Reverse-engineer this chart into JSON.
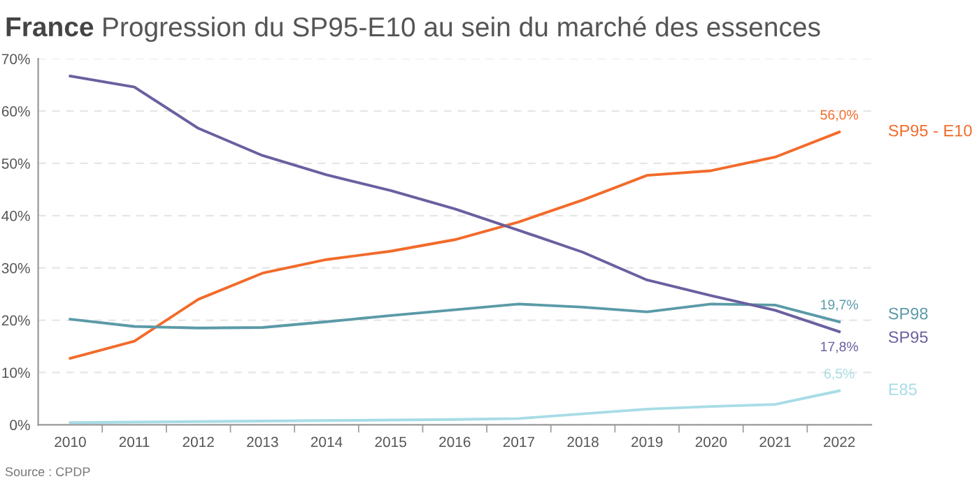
{
  "chart_data": {
    "type": "line",
    "title": "France",
    "subtitle": "Progression du SP95-E10 au sein du marché des essences",
    "categories": [
      "2010",
      "2011",
      "2012",
      "2013",
      "2014",
      "2015",
      "2016",
      "2017",
      "2018",
      "2019",
      "2020",
      "2021",
      "2022"
    ],
    "series": [
      {
        "name": "SP95 - E10",
        "color": "#f26b2a",
        "values": [
          12.7,
          16.0,
          24.0,
          29.0,
          31.6,
          33.2,
          35.4,
          38.8,
          43.0,
          47.7,
          48.6,
          51.2,
          56.0
        ],
        "value_labels": [
          null,
          null,
          null,
          null,
          null,
          null,
          null,
          null,
          null,
          null,
          null,
          null,
          "56,0%"
        ]
      },
      {
        "name": "SP98",
        "color": "#5b9aa8",
        "values": [
          20.2,
          18.8,
          18.5,
          18.6,
          19.7,
          20.9,
          22.0,
          23.1,
          22.5,
          21.6,
          23.1,
          22.9,
          19.7
        ],
        "value_labels": [
          null,
          null,
          null,
          null,
          null,
          null,
          null,
          null,
          null,
          null,
          null,
          null,
          "19,7%"
        ]
      },
      {
        "name": "SP95",
        "color": "#6b5fa0",
        "values": [
          66.7,
          64.6,
          56.7,
          51.5,
          47.8,
          44.8,
          41.3,
          37.2,
          33.0,
          27.7,
          24.7,
          21.9,
          17.8
        ],
        "value_labels": [
          null,
          null,
          null,
          null,
          null,
          null,
          null,
          null,
          null,
          null,
          null,
          null,
          "17,8%"
        ]
      },
      {
        "name": "E85",
        "color": "#a8dce6",
        "values": [
          0.4,
          0.5,
          0.6,
          0.7,
          0.8,
          0.9,
          1.0,
          1.2,
          2.1,
          3.0,
          3.5,
          3.9,
          6.5
        ],
        "value_labels": [
          null,
          null,
          null,
          null,
          null,
          null,
          null,
          null,
          null,
          null,
          null,
          null,
          "6,5%"
        ]
      }
    ],
    "ylim": [
      0,
      70
    ],
    "yticks": [
      {
        "value": 0,
        "label": "0%"
      },
      {
        "value": 10,
        "label": "10%"
      },
      {
        "value": 20,
        "label": "20%"
      },
      {
        "value": 30,
        "label": "30%"
      },
      {
        "value": 40,
        "label": "40%"
      },
      {
        "value": 50,
        "label": "50%"
      },
      {
        "value": 60,
        "label": "60%"
      },
      {
        "value": 70,
        "label": "70%"
      }
    ],
    "grid": "y",
    "legend": false,
    "marker": "none",
    "line_style": "solid",
    "annotations": [
      "Source : CPDP"
    ]
  }
}
